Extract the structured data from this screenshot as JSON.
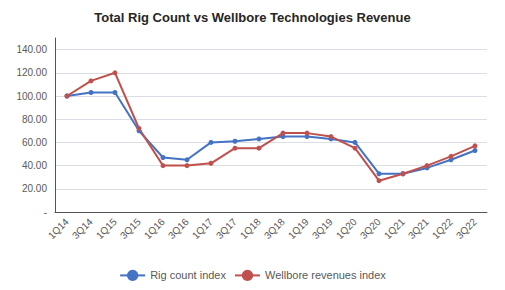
{
  "chart_data": {
    "type": "line",
    "title": "Total Rig Count vs Wellbore Technologies Revenue",
    "categories": [
      "1Q14",
      "3Q14",
      "1Q15",
      "3Q15",
      "1Q16",
      "3Q16",
      "1Q17",
      "3Q17",
      "1Q18",
      "3Q18",
      "1Q19",
      "3Q19",
      "1Q20",
      "3Q20",
      "1Q21",
      "3Q21",
      "1Q22",
      "3Q22"
    ],
    "series": [
      {
        "name": "Rig count index",
        "color": "#4472C4",
        "values": [
          100,
          103,
          103,
          70,
          47,
          45,
          60,
          61,
          63,
          65,
          65,
          63,
          60,
          33,
          33,
          38,
          45,
          53
        ]
      },
      {
        "name": "Wellbore revenues index",
        "color": "#C0504D",
        "values": [
          100,
          113,
          120,
          72,
          40,
          40,
          42,
          55,
          55,
          68,
          68,
          65,
          55,
          27,
          33,
          40,
          48,
          57
        ]
      }
    ],
    "ylim": [
      0,
      150
    ],
    "yticks": [
      {
        "value": 0,
        "label": "-"
      },
      {
        "value": 20,
        "label": "20.00"
      },
      {
        "value": 40,
        "label": "40.00"
      },
      {
        "value": 60,
        "label": "60.00"
      },
      {
        "value": 80,
        "label": "80.00"
      },
      {
        "value": 100,
        "label": "100.00"
      },
      {
        "value": 120,
        "label": "120.00"
      },
      {
        "value": 140,
        "label": "140.00"
      }
    ],
    "grid": true,
    "legend": "bottom",
    "marker": "circle"
  }
}
